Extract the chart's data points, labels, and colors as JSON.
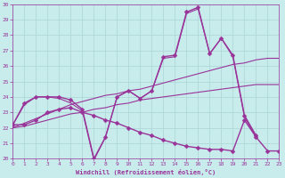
{
  "xlabel": "Windchill (Refroidissement éolien,°C)",
  "background_color": "#c8ecec",
  "grid_color": "#b0d8d8",
  "line_color": "#993399",
  "xlim": [
    0,
    23
  ],
  "ylim": [
    20,
    30
  ],
  "ytick_vals": [
    20,
    21,
    22,
    23,
    24,
    25,
    26,
    27,
    28,
    29,
    30
  ],
  "xtick_vals": [
    0,
    1,
    2,
    3,
    4,
    5,
    6,
    7,
    8,
    9,
    10,
    11,
    12,
    13,
    14,
    15,
    16,
    17,
    18,
    19,
    20,
    21,
    22,
    23
  ],
  "series": [
    {
      "x": [
        0,
        1,
        2,
        3,
        4,
        5,
        6,
        7,
        8,
        9,
        10,
        11,
        12,
        13,
        14,
        15,
        16,
        17,
        18,
        19,
        20,
        21
      ],
      "y": [
        22.2,
        23.6,
        24.0,
        24.0,
        24.0,
        23.8,
        23.2,
        20.0,
        21.4,
        24.0,
        24.4,
        23.9,
        24.4,
        26.6,
        26.7,
        29.5,
        29.8,
        26.8,
        27.8,
        26.7,
        22.8,
        21.5
      ],
      "marker": "D",
      "markersize": 2.5,
      "linewidth": 1.0
    },
    {
      "x": [
        0,
        1,
        2,
        3,
        4,
        5,
        6,
        7,
        8,
        9,
        10,
        11,
        12,
        13,
        14,
        15,
        16,
        17,
        18,
        19,
        20,
        21
      ],
      "y": [
        22.2,
        23.5,
        24.0,
        24.0,
        23.9,
        23.6,
        23.1,
        19.9,
        21.4,
        24.0,
        24.4,
        23.9,
        24.4,
        26.5,
        26.6,
        29.4,
        29.7,
        26.8,
        27.8,
        26.6,
        22.7,
        21.4
      ],
      "marker": null,
      "markersize": 0,
      "linewidth": 0.8
    },
    {
      "x": [
        0,
        1,
        2,
        3,
        4,
        5,
        6,
        7,
        8,
        9,
        10,
        11,
        12,
        13,
        14,
        15,
        16,
        17,
        18,
        19,
        20,
        21,
        22,
        23
      ],
      "y": [
        22.0,
        22.3,
        22.6,
        22.9,
        23.2,
        23.5,
        23.7,
        23.9,
        24.1,
        24.2,
        24.4,
        24.5,
        24.7,
        24.9,
        25.1,
        25.3,
        25.5,
        25.7,
        25.9,
        26.1,
        26.2,
        26.4,
        26.5,
        26.5
      ],
      "marker": null,
      "markersize": 0,
      "linewidth": 0.8
    },
    {
      "x": [
        0,
        1,
        2,
        3,
        4,
        5,
        6,
        7,
        8,
        9,
        10,
        11,
        12,
        13,
        14,
        15,
        16,
        17,
        18,
        19,
        20,
        21,
        22,
        23
      ],
      "y": [
        22.0,
        22.1,
        22.3,
        22.5,
        22.7,
        22.9,
        23.0,
        23.2,
        23.3,
        23.5,
        23.6,
        23.8,
        23.9,
        24.0,
        24.1,
        24.2,
        24.3,
        24.4,
        24.5,
        24.6,
        24.7,
        24.8,
        24.8,
        24.8
      ],
      "marker": null,
      "markersize": 0,
      "linewidth": 0.8
    },
    {
      "x": [
        0,
        1,
        2,
        3,
        4,
        5,
        6,
        7,
        8,
        9,
        10,
        11,
        12,
        13,
        14,
        15,
        16,
        17,
        18,
        19,
        20,
        21,
        22,
        23
      ],
      "y": [
        22.2,
        22.2,
        22.5,
        23.0,
        23.2,
        23.3,
        23.0,
        22.8,
        22.5,
        22.3,
        22.0,
        21.7,
        21.5,
        21.2,
        21.0,
        20.8,
        20.7,
        20.6,
        20.6,
        20.5,
        22.5,
        21.4,
        20.5,
        20.5
      ],
      "marker": "D",
      "markersize": 2.5,
      "linewidth": 1.0
    }
  ]
}
